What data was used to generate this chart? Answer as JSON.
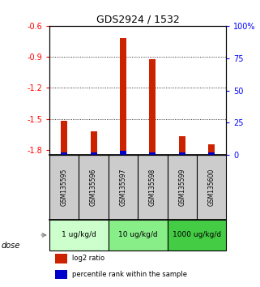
{
  "title": "GDS2924 / 1532",
  "samples": [
    "GSM135595",
    "GSM135596",
    "GSM135597",
    "GSM135598",
    "GSM135599",
    "GSM135600"
  ],
  "log2_ratio": [
    -1.52,
    -1.62,
    -0.72,
    -0.92,
    -1.67,
    -1.75
  ],
  "percentile_rank": [
    2,
    2,
    3,
    2,
    2,
    2
  ],
  "ylim_left": [
    -1.85,
    -0.6
  ],
  "ylim_right": [
    0,
    100
  ],
  "left_ticks": [
    -1.8,
    -1.5,
    -1.2,
    -0.9,
    -0.6
  ],
  "right_ticks": [
    0,
    25,
    50,
    75,
    100
  ],
  "left_tick_labels": [
    "-1.8",
    "-1.5",
    "-1.2",
    "-0.9",
    "-0.6"
  ],
  "right_tick_labels": [
    "0",
    "25",
    "50",
    "75",
    "100%"
  ],
  "red_color": "#cc2200",
  "blue_color": "#0000cc",
  "dose_groups": [
    {
      "label": "1 ug/kg/d",
      "samples": [
        0,
        1
      ],
      "color": "#ccffcc"
    },
    {
      "label": "10 ug/kg/d",
      "samples": [
        2,
        3
      ],
      "color": "#88ee88"
    },
    {
      "label": "1000 ug/kg/d",
      "samples": [
        4,
        5
      ],
      "color": "#44cc44"
    }
  ],
  "dose_label": "dose",
  "legend_red": "log2 ratio",
  "legend_blue": "percentile rank within the sample",
  "sample_bg_color": "#cccccc"
}
